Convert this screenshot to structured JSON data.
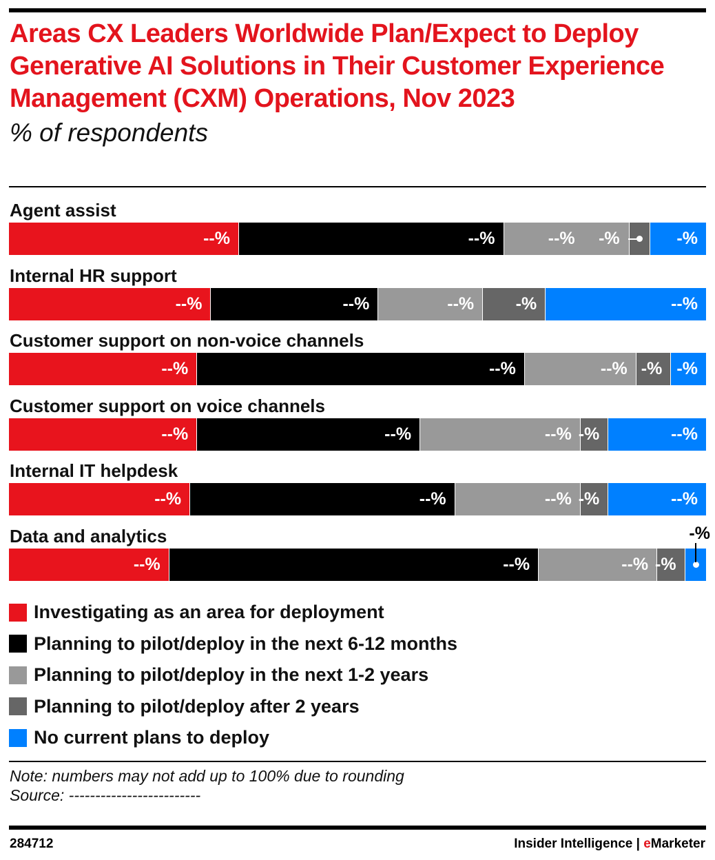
{
  "title": "Areas CX Leaders Worldwide Plan/Expect to Deploy Generative AI Solutions in Their Customer Experience Management (CXM) Operations, Nov 2023",
  "subtitle": "% of respondents",
  "note": "Note: numbers may not add up to 100% due to rounding",
  "source": "Source: -------------------------",
  "chart_id": "284712",
  "brand": {
    "left": "Insider Intelligence",
    "sep": " | ",
    "e": "e",
    "right": "Marketer"
  },
  "chart_data": {
    "type": "bar",
    "orientation": "horizontal-stacked-100",
    "title": "Areas CX Leaders Worldwide Plan/Expect to Deploy Generative AI Solutions in Their Customer Experience Management (CXM) Operations, Nov 2023",
    "subtitle": "% of respondents",
    "legend_position": "bottom",
    "categories": [
      "Agent assist",
      "Internal HR support",
      "Customer support on non-voice channels",
      "Customer support on voice channels",
      "Internal IT helpdesk",
      "Data and analytics"
    ],
    "series": [
      {
        "name": "Investigating as an area for deployment",
        "color": "#e8141d",
        "values": [
          33,
          29,
          27,
          27,
          26,
          23
        ],
        "labels": [
          "--%",
          "--%",
          "--%",
          "--%",
          "--%",
          "--%"
        ]
      },
      {
        "name": "Planning to pilot/deploy in the next 6-12 months",
        "color": "#000000",
        "values": [
          38,
          24,
          47,
          32,
          38,
          53
        ],
        "labels": [
          "--%",
          "--%",
          "--%",
          "--%",
          "--%",
          "--%"
        ]
      },
      {
        "name": "Planning to pilot/deploy in the next 1-2 years",
        "color": "#999999",
        "values": [
          18,
          15,
          16,
          23,
          18,
          17
        ],
        "labels": [
          "--%",
          "--%",
          "--%",
          "--%",
          "--%",
          "--%"
        ]
      },
      {
        "name": "Planning to pilot/deploy after 2 years",
        "color": "#666666",
        "values": [
          3,
          9,
          5,
          4,
          4,
          4
        ],
        "labels": [
          "-%",
          "-%",
          "-%",
          "-%",
          "-%",
          "-%"
        ]
      },
      {
        "name": "No current plans to deploy",
        "color": "#0080ff",
        "values": [
          8,
          23,
          5,
          14,
          14,
          3
        ],
        "labels": [
          "-%",
          "--%",
          "-%",
          "--%",
          "--%",
          "-%"
        ]
      }
    ],
    "callouts": [
      {
        "category": 0,
        "series": 3,
        "style": "left"
      },
      {
        "category": 5,
        "series": 4,
        "style": "above"
      }
    ]
  }
}
